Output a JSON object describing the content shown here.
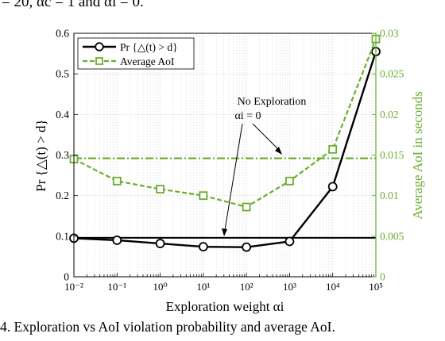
{
  "top_text": "= 20, αc = 1 and αi = 0.",
  "caption": "4.  Exploration vs AoI violation probability and average AoI.",
  "colors": {
    "black_series": "#000000",
    "green_series": "#6aae2f",
    "no_exploration": "#6aae2f"
  },
  "chart_data": {
    "type": "line",
    "xlabel": "Exploration weight αi",
    "ylabel": "Pr {△(t) > d}",
    "ylabel_right": "Average AoI in seconds",
    "x_scale": "log",
    "xlim": [
      0.01,
      100000
    ],
    "ylim": [
      0,
      0.6
    ],
    "ylim_right": [
      0,
      0.03
    ],
    "grid": true,
    "legend_position": "top-left",
    "x_tick_labels": [
      "10⁻²",
      "10⁻¹",
      "10⁰",
      "10¹",
      "10²",
      "10³",
      "10⁴",
      "10⁵"
    ],
    "y_tick_labels": [
      "0",
      "0.1",
      "0.2",
      "0.3",
      "0.4",
      "0.5",
      "0.6"
    ],
    "y_right_tick_labels": [
      "0",
      "0.005",
      "0.01",
      "0.015",
      "0.02",
      "0.025",
      "0.03"
    ],
    "series": [
      {
        "name": "Pr {△(t) > d}",
        "axis": "left",
        "marker": "circle",
        "x": [
          0.01,
          0.1,
          1,
          10,
          100,
          1000,
          10000,
          100000
        ],
        "values": [
          0.095,
          0.09,
          0.082,
          0.074,
          0.073,
          0.087,
          0.222,
          0.555
        ]
      },
      {
        "name": "Average AoI",
        "axis": "right",
        "marker": "square",
        "x": [
          0.01,
          0.1,
          1,
          10,
          100,
          1000,
          10000,
          100000
        ],
        "values": [
          0.0145,
          0.0118,
          0.0108,
          0.01,
          0.0086,
          0.0118,
          0.0157,
          0.0293
        ]
      }
    ],
    "reference_lines": [
      {
        "axis": "left",
        "value": 0.096,
        "color": "#000000"
      },
      {
        "axis": "right",
        "value": 0.0146,
        "color": "#6aae2f"
      }
    ],
    "annotation": {
      "line1": "No Exploration",
      "line2": "αi = 0"
    }
  }
}
